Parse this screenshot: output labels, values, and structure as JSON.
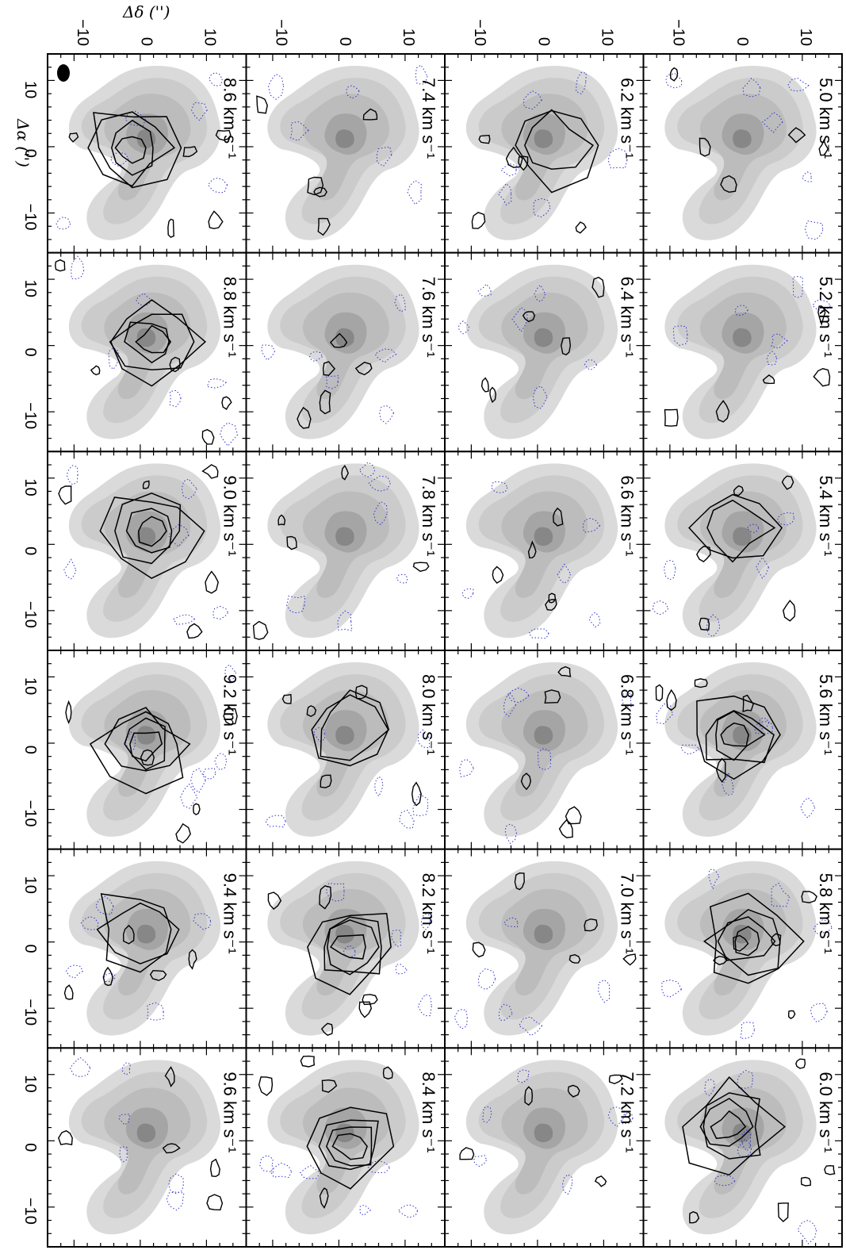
{
  "figure": {
    "axis_ra_label": "Δα ('')",
    "axis_dec_label": "Δδ ('')",
    "ra_ticks": [
      "10",
      "0",
      "−10"
    ],
    "dec_ticks": [
      "−10",
      "0",
      "10"
    ],
    "beam_color": "#000000",
    "contour_color": "#000000",
    "negative_contour_color": "#3333cc",
    "greyscale": "integrated intensity map (grey)"
  },
  "panels": [
    {
      "velocity": "5.0 km s⁻¹",
      "emission": "weak"
    },
    {
      "velocity": "5.2 km s⁻¹",
      "emission": "weak"
    },
    {
      "velocity": "5.4 km s⁻¹",
      "emission": "moderate"
    },
    {
      "velocity": "5.6 km s⁻¹",
      "emission": "strong"
    },
    {
      "velocity": "5.8 km s⁻¹",
      "emission": "strong"
    },
    {
      "velocity": "6.0 km s⁻¹",
      "emission": "strong"
    },
    {
      "velocity": "6.2 km s⁻¹",
      "emission": "moderate"
    },
    {
      "velocity": "6.4 km s⁻¹",
      "emission": "weak"
    },
    {
      "velocity": "6.6 km s⁻¹",
      "emission": "weak"
    },
    {
      "velocity": "6.8 km s⁻¹",
      "emission": "weak"
    },
    {
      "velocity": "7.0 km s⁻¹",
      "emission": "weak"
    },
    {
      "velocity": "7.2 km s⁻¹",
      "emission": "weak"
    },
    {
      "velocity": "7.4 km s⁻¹",
      "emission": "weak"
    },
    {
      "velocity": "7.6 km s⁻¹",
      "emission": "weak"
    },
    {
      "velocity": "7.8 km s⁻¹",
      "emission": "weak"
    },
    {
      "velocity": "8.0 km s⁻¹",
      "emission": "moderate"
    },
    {
      "velocity": "8.2 km s⁻¹",
      "emission": "strong"
    },
    {
      "velocity": "8.4 km s⁻¹",
      "emission": "strong"
    },
    {
      "velocity": "8.6 km s⁻¹",
      "emission": "strong"
    },
    {
      "velocity": "8.8 km s⁻¹",
      "emission": "strong"
    },
    {
      "velocity": "9.0 km s⁻¹",
      "emission": "strong"
    },
    {
      "velocity": "9.2 km s⁻¹",
      "emission": "strong"
    },
    {
      "velocity": "9.4 km s⁻¹",
      "emission": "moderate"
    },
    {
      "velocity": "9.6 km s⁻¹",
      "emission": "weak"
    }
  ]
}
